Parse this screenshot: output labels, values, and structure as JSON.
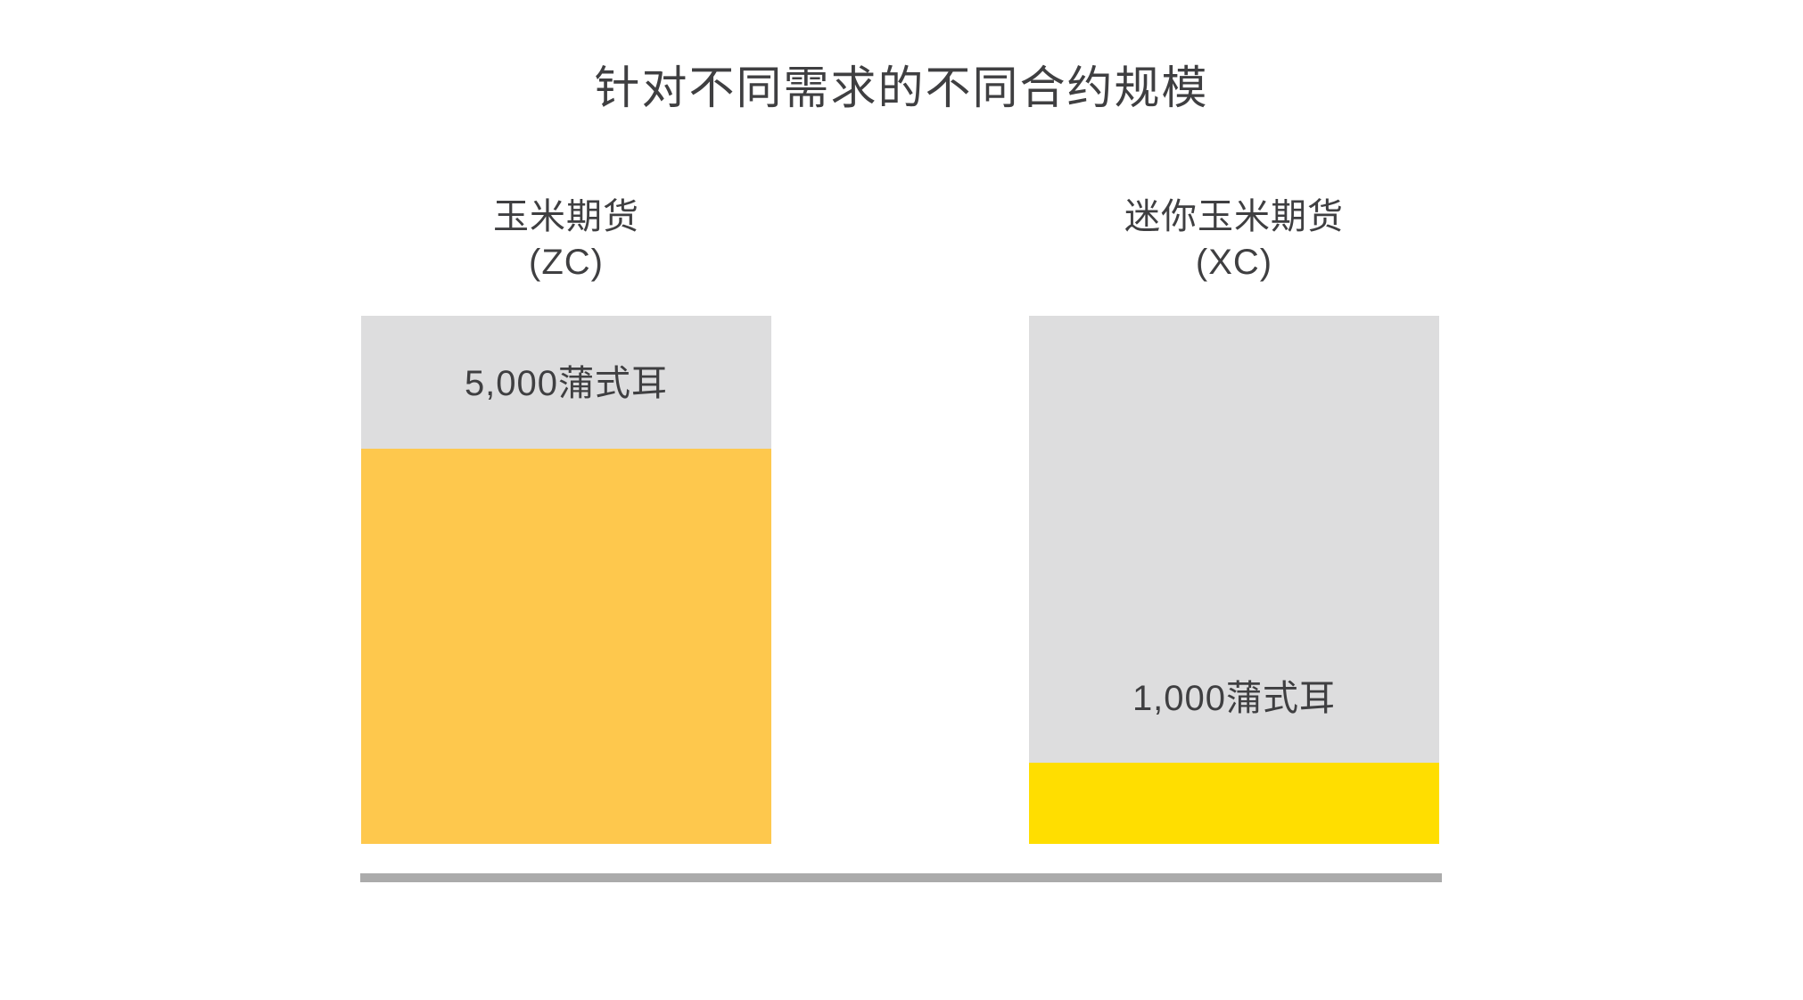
{
  "title": "针对不同需求的不同合约规模",
  "colors": {
    "text": "#3F3F41",
    "bar_background": "#DDDDDE",
    "standard_fill": "#FEC84D",
    "micro_fill": "#FFDE00",
    "baseline": "#ABABAB"
  },
  "bars": [
    {
      "label_line1": "玉米期货",
      "label_line2": "(ZC)",
      "value_label": "5,000蒲式耳",
      "bushels": 5000,
      "fill_pct": 74.8,
      "fill_color": "#FEC84D"
    },
    {
      "label_line1": "迷你玉米期货",
      "label_line2": "(XC)",
      "value_label": "1,000蒲式耳",
      "bushels": 1000,
      "fill_pct": 15.4,
      "fill_color": "#FFDE00"
    }
  ],
  "chart_data": {
    "type": "bar",
    "title": "针对不同需求的不同合约规模",
    "categories": [
      "玉米期货 (ZC)",
      "迷你玉米期货 (XC)"
    ],
    "values": [
      5000,
      1000
    ],
    "unit": "蒲式耳",
    "value_labels": [
      "5,000蒲式耳",
      "1,000蒲式耳"
    ],
    "xlabel": "",
    "ylabel": "",
    "grid": false,
    "legend": false,
    "notes": "Each bar drawn at equal full height; colored fill height is proportional to contract size (5:1)."
  }
}
